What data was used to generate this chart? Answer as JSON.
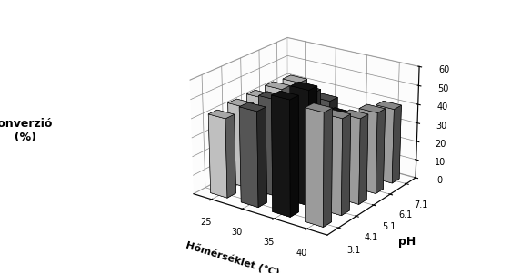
{
  "xlabel": "Hőmérséklet (°C)",
  "ylabel": "pH",
  "zlabel": "Konverzió\n(%)",
  "temperatures": [
    25,
    30,
    35,
    40
  ],
  "ph_values": [
    3.1,
    4.1,
    5.1,
    6.1,
    7.1
  ],
  "data": {
    "comment": "rows=temp index [25,30,35,40], cols=pH index [3.1,4.1,5.1,6.1,7.1]",
    "t25": [
      42,
      43,
      43,
      43,
      42
    ],
    "t30": [
      50,
      51,
      44,
      45,
      36
    ],
    "t35": [
      60,
      60,
      37,
      37,
      20
    ],
    "t40": [
      58,
      50,
      45,
      43,
      40
    ]
  },
  "zlim": [
    0,
    60
  ],
  "zticks": [
    0,
    10,
    20,
    30,
    40,
    50,
    60
  ],
  "colors": {
    "t25": "#d8d8d8",
    "t30": "#606060",
    "t35": "#181818",
    "t40": "#b0b0b0"
  },
  "edge_color": "#000000",
  "background_color": "#ffffff",
  "figsize": [
    5.84,
    3.01
  ],
  "dpi": 100,
  "elev": 22,
  "azim": -55
}
